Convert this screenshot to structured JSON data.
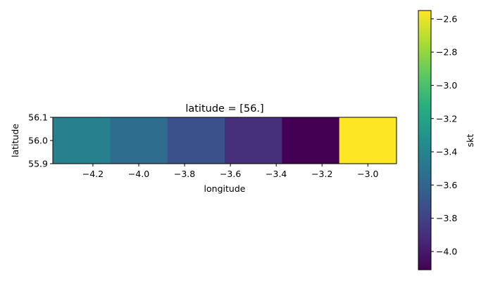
{
  "chart_data": {
    "type": "heatmap",
    "title": "latitude = [56.]",
    "xlabel": "longitude",
    "ylabel": "latitude",
    "colorbar_label": "skt",
    "colormap": "viridis",
    "xlim": [
      -4.375,
      -2.875
    ],
    "ylim": [
      55.9,
      56.1
    ],
    "x_ticks": [
      -4.2,
      -4.0,
      -3.8,
      -3.6,
      -3.4,
      -3.2,
      -3.0
    ],
    "x_tick_labels": [
      "−4.2",
      "−4.0",
      "−3.8",
      "−3.6",
      "−3.4",
      "−3.2",
      "−3.0"
    ],
    "y_ticks": [
      56.1,
      56.0,
      55.9
    ],
    "y_tick_labels": [
      "56.1",
      "56.0",
      "55.9"
    ],
    "cells": [
      {
        "longitude": -4.25,
        "latitude": 56.0,
        "value": -3.43
      },
      {
        "longitude": -4.0,
        "latitude": 56.0,
        "value": -3.55
      },
      {
        "longitude": -3.75,
        "latitude": 56.0,
        "value": -3.72
      },
      {
        "longitude": -3.5,
        "latitude": 56.0,
        "value": -3.9
      },
      {
        "longitude": -3.25,
        "latitude": 56.0,
        "value": -4.11
      },
      {
        "longitude": -3.0,
        "latitude": 56.0,
        "value": -2.55
      }
    ],
    "colorbar": {
      "vmin": -4.11,
      "vmax": -2.55,
      "ticks": [
        -2.6,
        -2.8,
        -3.0,
        -3.2,
        -3.4,
        -3.6,
        -3.8,
        -4.0
      ],
      "tick_labels": [
        "−2.6",
        "−2.8",
        "−3.0",
        "−3.2",
        "−3.4",
        "−3.6",
        "−3.8",
        "−4.0"
      ]
    }
  }
}
